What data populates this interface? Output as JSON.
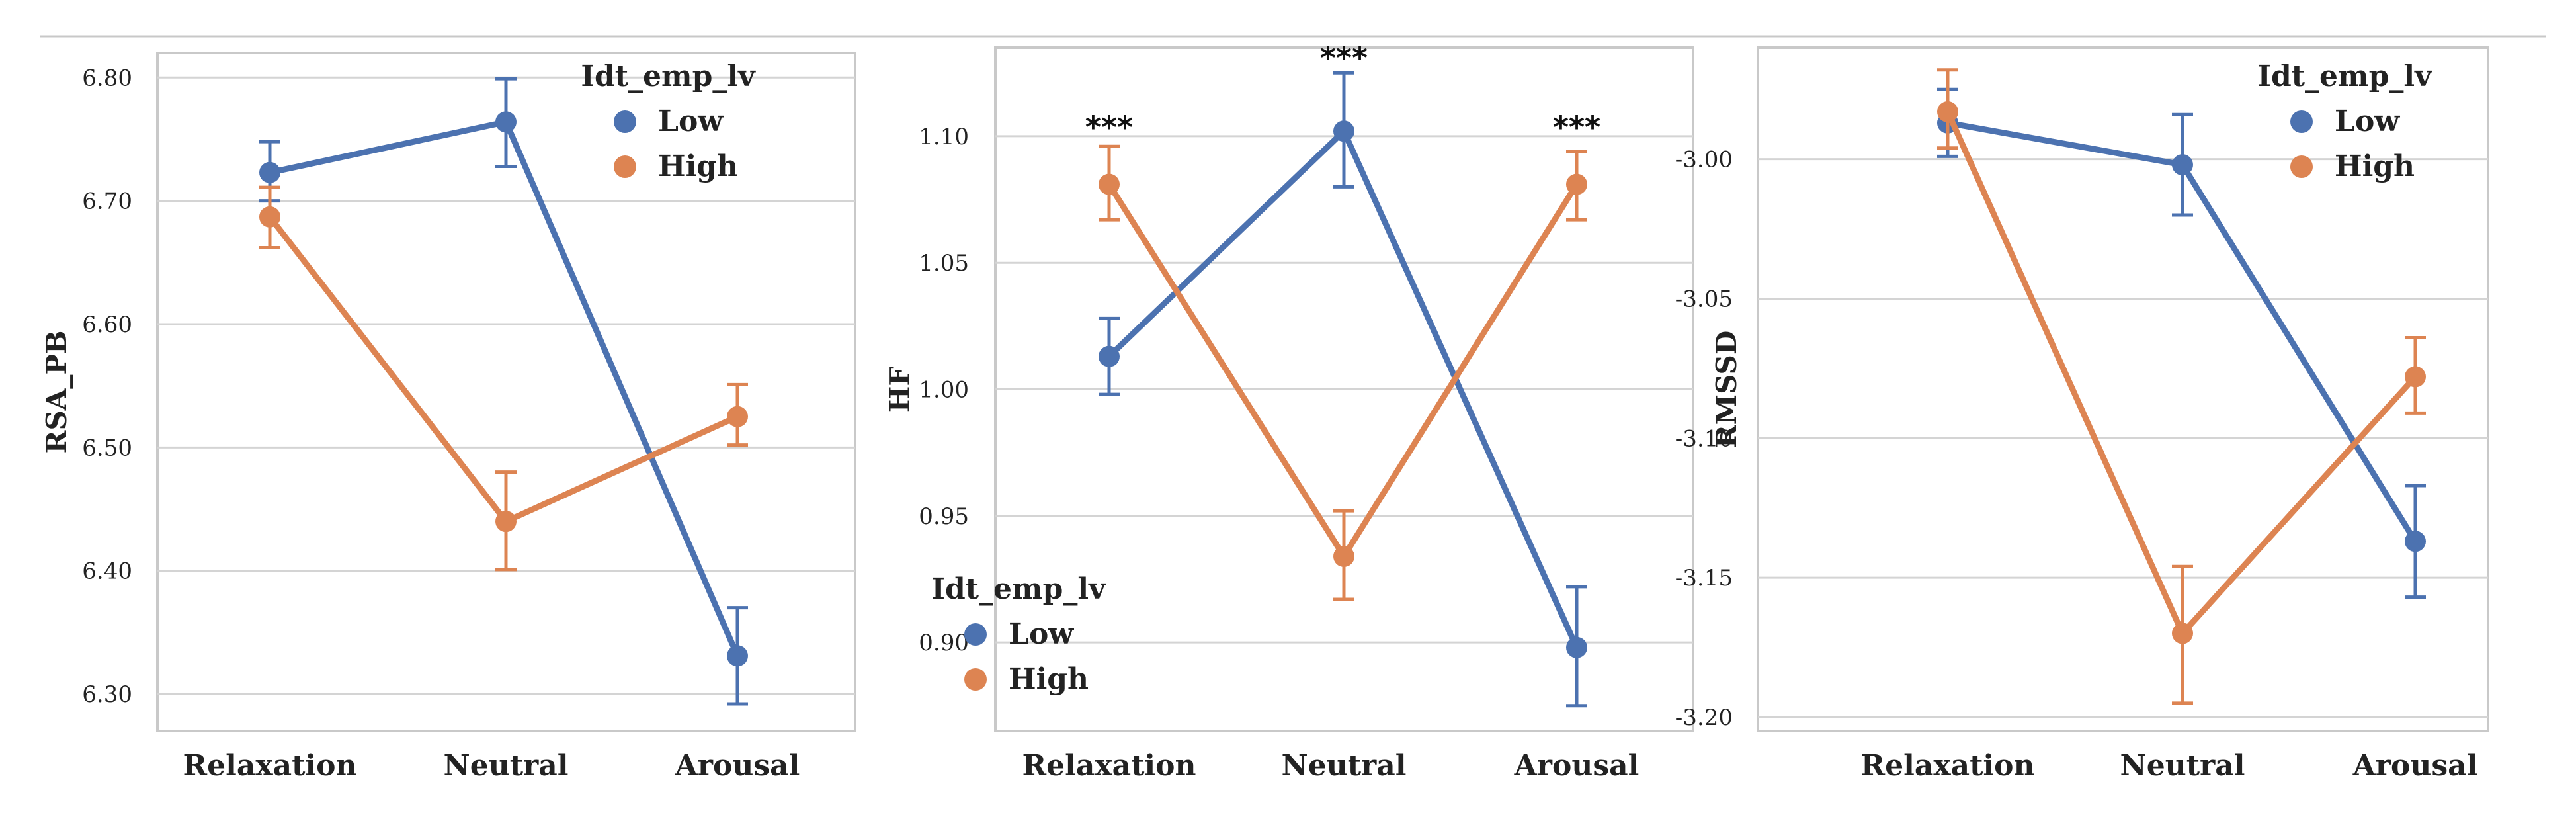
{
  "chart_data": [
    {
      "type": "line",
      "categories": [
        "Relaxation",
        "Neutral",
        "Arousal"
      ],
      "ylabel": "RSA_PB",
      "xlabel": "",
      "ylim": [
        6.27,
        6.82
      ],
      "yticks": [
        6.3,
        6.4,
        6.5,
        6.6,
        6.7,
        6.8
      ],
      "ytick_labels": [
        "6.30",
        "6.40",
        "6.50",
        "6.60",
        "6.70",
        "6.80"
      ],
      "grid": true,
      "legend": {
        "title": "Idt_emp_lv",
        "position": "top-right"
      },
      "series": [
        {
          "name": "Low",
          "color": "#4c72b0",
          "values": [
            6.723,
            6.764,
            6.331
          ],
          "err_low": [
            6.7,
            6.728,
            6.292
          ],
          "err_high": [
            6.748,
            6.799,
            6.37
          ]
        },
        {
          "name": "High",
          "color": "#dd8452",
          "values": [
            6.687,
            6.44,
            6.525
          ],
          "err_low": [
            6.662,
            6.401,
            6.502
          ],
          "err_high": [
            6.711,
            6.48,
            6.551
          ]
        }
      ],
      "annotations": []
    },
    {
      "type": "line",
      "categories": [
        "Relaxation",
        "Neutral",
        "Arousal"
      ],
      "ylabel": "HF",
      "xlabel": "",
      "ylim": [
        0.865,
        1.135
      ],
      "yticks": [
        0.9,
        0.95,
        1.0,
        1.05,
        1.1
      ],
      "ytick_labels": [
        "0.90",
        "0.95",
        "1.00",
        "1.05",
        "1.10"
      ],
      "grid": true,
      "legend": {
        "title": "Idt_emp_lv",
        "position": "bottom-left"
      },
      "series": [
        {
          "name": "Low",
          "color": "#4c72b0",
          "values": [
            1.013,
            1.102,
            0.898
          ],
          "err_low": [
            0.998,
            1.08,
            0.875
          ],
          "err_high": [
            1.028,
            1.125,
            0.922
          ]
        },
        {
          "name": "High",
          "color": "#dd8452",
          "values": [
            1.081,
            0.934,
            1.081
          ],
          "err_low": [
            1.067,
            0.917,
            1.067
          ],
          "err_high": [
            1.096,
            0.952,
            1.094
          ]
        }
      ],
      "annotations": [
        {
          "category": "Relaxation",
          "text": "***",
          "y": 1.1045
        },
        {
          "category": "Neutral",
          "text": "***",
          "y": 1.132
        },
        {
          "category": "Arousal",
          "text": "***",
          "y": 1.1045
        }
      ]
    },
    {
      "type": "line",
      "categories": [
        "Relaxation",
        "Neutral",
        "Arousal"
      ],
      "ylabel": "RMSSD",
      "xlabel": "",
      "ylim": [
        -3.205,
        -2.96
      ],
      "yticks": [
        -3.0,
        -3.05,
        -3.1,
        -3.15,
        -3.2
      ],
      "ytick_labels": [
        "-3.00",
        "-3.05",
        "-3.10",
        "-3.15",
        "-3.20"
      ],
      "grid": true,
      "legend": {
        "title": "Idt_emp_lv",
        "position": "top-right"
      },
      "series": [
        {
          "name": "Low",
          "color": "#4c72b0",
          "values": [
            -2.987,
            -3.002,
            -3.137
          ],
          "err_low": [
            -2.999,
            -3.02,
            -3.157
          ],
          "err_high": [
            -2.975,
            -2.984,
            -3.117
          ]
        },
        {
          "name": "High",
          "color": "#dd8452",
          "values": [
            -2.983,
            -3.17,
            -3.078
          ],
          "err_low": [
            -2.996,
            -3.195,
            -3.091
          ],
          "err_high": [
            -2.968,
            -3.146,
            -3.064
          ]
        }
      ],
      "annotations": []
    }
  ]
}
